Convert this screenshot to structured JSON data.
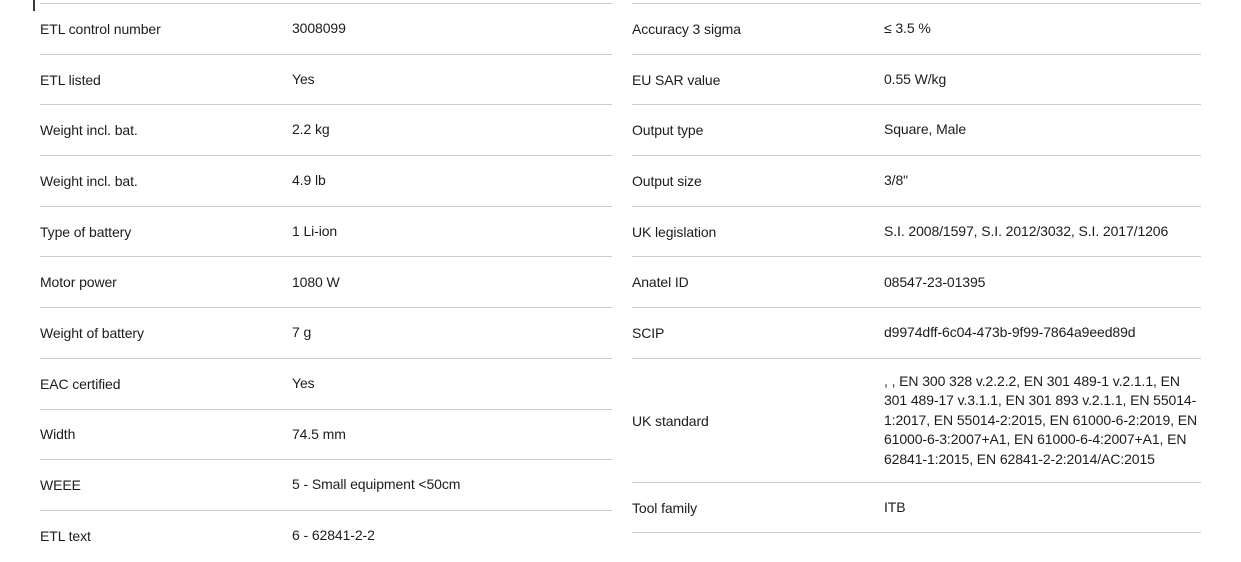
{
  "page": {
    "background_color": "#ffffff",
    "divider_color": "#cccccc",
    "text_color": "#1c1c1c"
  },
  "tables": {
    "left": {
      "rows": [
        {
          "label": "ETL control number",
          "value": "3008099"
        },
        {
          "label": "ETL listed",
          "value": "Yes"
        },
        {
          "label": "Weight incl. bat.",
          "value": "2.2 kg"
        },
        {
          "label": "Weight incl. bat.",
          "value": "4.9 lb"
        },
        {
          "label": "Type of battery",
          "value": "1 Li-ion"
        },
        {
          "label": "Motor power",
          "value": "1080 W"
        },
        {
          "label": "Weight of battery",
          "value": "7 g"
        },
        {
          "label": "EAC certified",
          "value": "Yes"
        },
        {
          "label": "Width",
          "value": "74.5 mm"
        },
        {
          "label": "WEEE",
          "value": "5 - Small equipment <50cm"
        },
        {
          "label": "ETL text",
          "value": "6 - 62841-2-2"
        }
      ]
    },
    "right": {
      "rows": [
        {
          "label": "Accuracy 3 sigma",
          "value": "≤ 3.5 %"
        },
        {
          "label": "EU SAR value",
          "value": "0.55 W/kg"
        },
        {
          "label": "Output type",
          "value": "Square, Male"
        },
        {
          "label": "Output size",
          "value": "3/8\""
        },
        {
          "label": "UK legislation",
          "value": "S.I. 2008/1597, S.I. 2012/3032, S.I. 2017/1206"
        },
        {
          "label": "Anatel ID",
          "value": "08547-23-01395"
        },
        {
          "label": "SCIP",
          "value": "d9974dff-6c04-473b-9f99-7864a9eed89d"
        },
        {
          "label": "UK standard",
          "value": ", , EN 300 328 v.2.2.2, EN 301 489-1 v.2.1.1, EN 301 489-17 v.3.1.1, EN 301 893 v.2.1.1, EN 55014-1:2017, EN 55014-2:2015, EN 61000-6-2:2019, EN 61000-6-3:2007+A1, EN 61000-6-4:2007+A1, EN 62841-1:2015, EN 62841-2-2:2014/AC:2015"
        },
        {
          "label": "Tool family",
          "value": "ITB"
        }
      ]
    }
  }
}
